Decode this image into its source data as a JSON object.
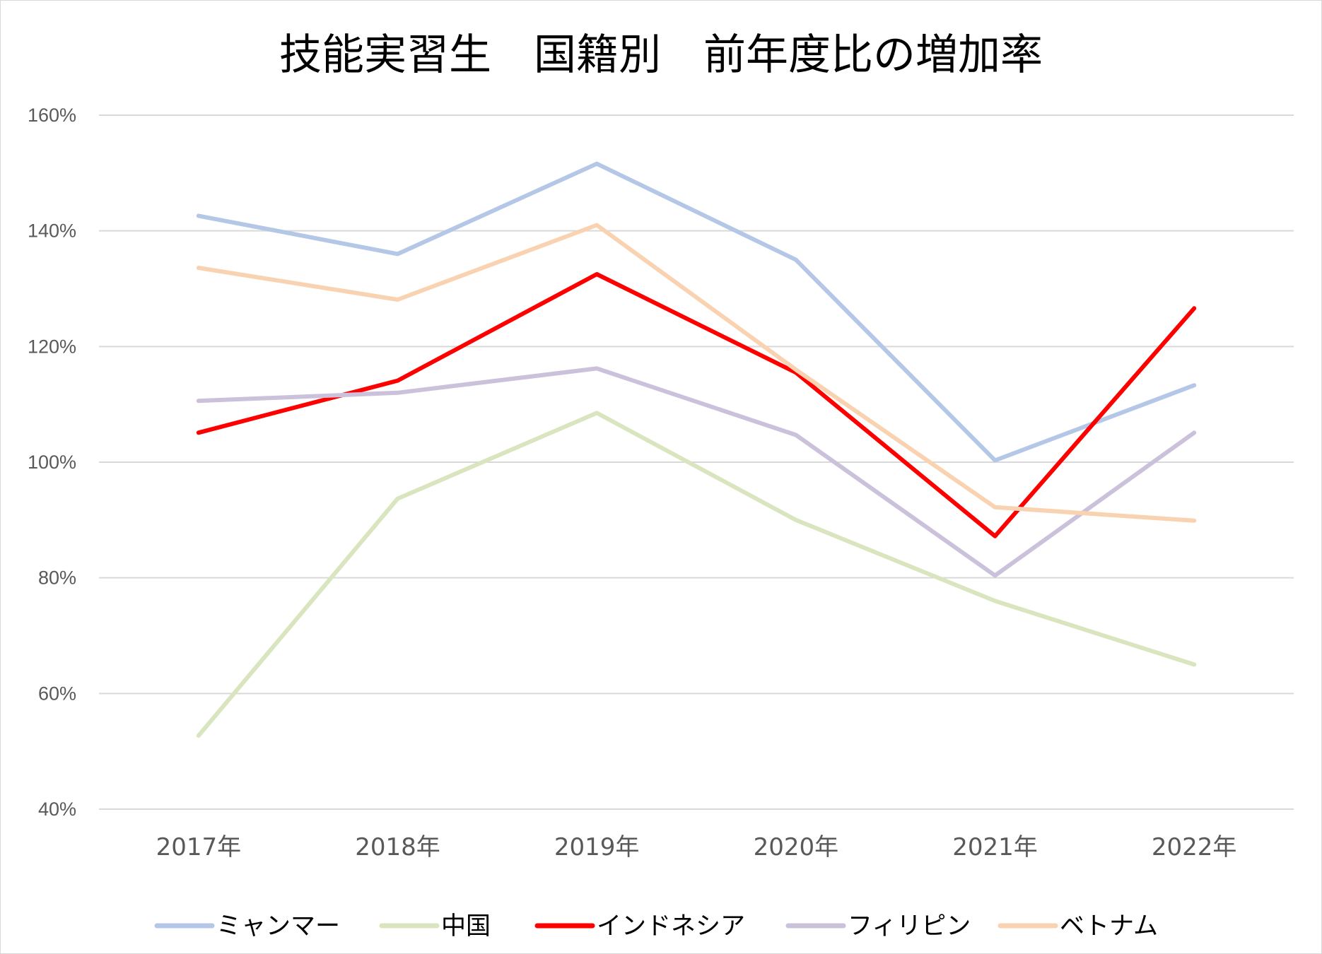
{
  "chart_data": {
    "type": "line",
    "title": "技能実習生　国籍別　前年度比の増加率",
    "xlabel": "",
    "ylabel": "",
    "categories": [
      "2017年",
      "2018年",
      "2019年",
      "2020年",
      "2021年",
      "2022年"
    ],
    "ylim": [
      0.4,
      1.6
    ],
    "yticks": [
      0.4,
      0.6,
      0.8,
      1.0,
      1.2,
      1.4,
      1.6
    ],
    "ytick_labels": [
      "40%",
      "60%",
      "80%",
      "100%",
      "120%",
      "140%",
      "160%"
    ],
    "grid": true,
    "legend_position": "bottom",
    "series": [
      {
        "name": "ミャンマー",
        "color": "#b4c7e7",
        "values": [
          1.426,
          1.36,
          1.516,
          1.35,
          1.003,
          1.133
        ]
      },
      {
        "name": "中国",
        "color": "#d9e5bf",
        "values": [
          0.527,
          0.937,
          1.085,
          0.9,
          0.76,
          0.65
        ]
      },
      {
        "name": "インドネシア",
        "color": "#ff0000",
        "values": [
          1.051,
          1.141,
          1.325,
          1.155,
          0.872,
          1.266
        ]
      },
      {
        "name": "フィリピン",
        "color": "#cbc1db",
        "values": [
          1.106,
          1.12,
          1.162,
          1.047,
          0.804,
          1.051
        ]
      },
      {
        "name": "ベトナム",
        "color": "#f9d3b1",
        "values": [
          1.336,
          1.281,
          1.41,
          1.16,
          0.922,
          0.899
        ]
      }
    ]
  }
}
